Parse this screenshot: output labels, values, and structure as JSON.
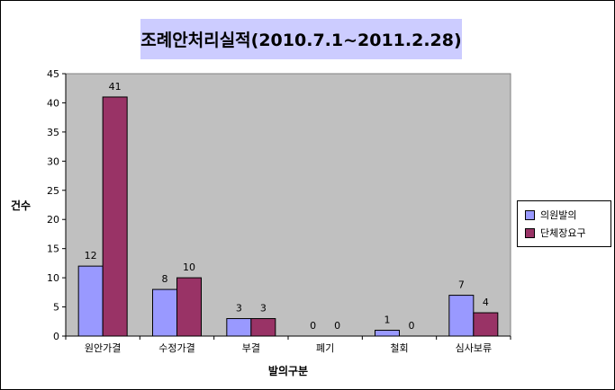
{
  "chart_data": {
    "type": "bar",
    "title": "조례안처리실적(2010.7.1~2011.2.28)",
    "xlabel": "발의구분",
    "ylabel": "건수",
    "ylim": [
      0,
      45
    ],
    "yticks": [
      0,
      5,
      10,
      15,
      20,
      25,
      30,
      35,
      40,
      45
    ],
    "categories": [
      "원안가결",
      "수정가결",
      "부결",
      "폐기",
      "철회",
      "심사보류"
    ],
    "series": [
      {
        "name": "의원발의",
        "values": [
          12,
          8,
          3,
          0,
          1,
          7
        ],
        "color": "#9999ff"
      },
      {
        "name": "단체장요구",
        "values": [
          41,
          10,
          3,
          0,
          0,
          4
        ],
        "color": "#993366"
      }
    ],
    "grid": false,
    "plot_background": "#c0c0c0",
    "legend_position": "right"
  }
}
